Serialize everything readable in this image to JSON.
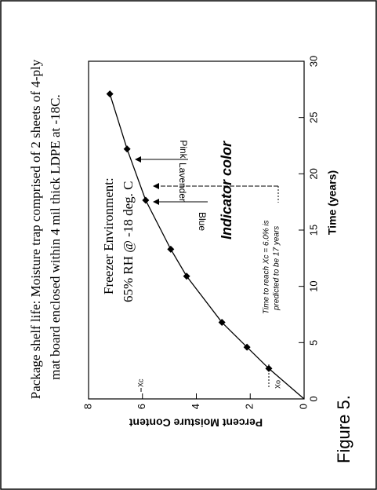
{
  "chart_data": {
    "type": "line",
    "title": "Package shelf life:   Moisture trap comprised of 2 sheets of 4-ply",
    "subtitle": "mat board enclosed within 4 mil thick LDPE at -18C.",
    "x_label": "Time (years)",
    "y_label": "Percent Moisture Content",
    "figure_label": "Figure 5.",
    "annotations": {
      "environment": "Freezer Environment:",
      "conditions": "65% RH @ -18 deg. C",
      "indicator": "Indicator color",
      "pink": "Pink",
      "lavender": "Lavender",
      "blue": "Blue",
      "prediction_1": "Time to reach Xc = 6.0% is",
      "prediction_2": "predicted to be 17 years",
      "xc": "Xc",
      "xo": "Xo"
    },
    "series": [
      {
        "color": "#000000",
        "x": [
          0,
          2.7,
          4.6,
          6.8,
          10.9,
          13.3,
          17.65,
          22.2,
          27.1
        ],
        "values": [
          0,
          1.31,
          2.12,
          3.05,
          4.36,
          4.95,
          5.88,
          6.57,
          7.21
        ]
      }
    ],
    "markers": {
      "color": "#000000",
      "x": [
        2.7,
        4.6,
        6.8,
        10.9,
        13.3,
        17.65,
        22.2,
        27.1
      ],
      "values": [
        1.31,
        2.12,
        3.05,
        4.36,
        4.95,
        5.88,
        6.57,
        7.21
      ]
    },
    "xlim": [
      0,
      30
    ],
    "xticks": [
      0,
      5,
      10,
      15,
      20,
      25,
      30
    ],
    "ylim": [
      0,
      8
    ],
    "yticks": [
      0,
      2,
      4,
      6,
      8
    ]
  }
}
